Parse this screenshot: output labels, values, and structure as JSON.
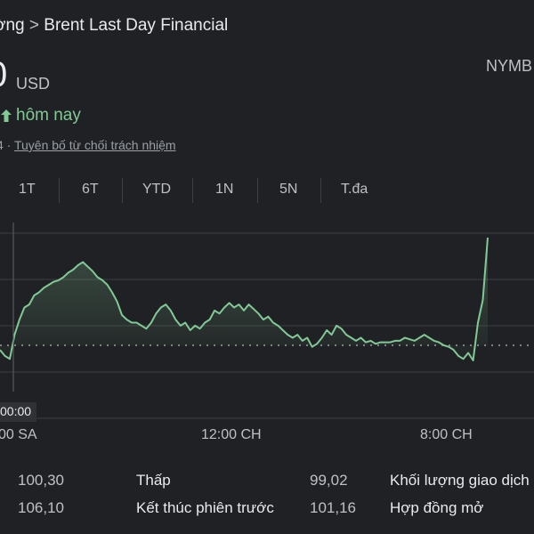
{
  "breadcrumb": {
    "prev": "ờng",
    "sep": ">",
    "current": "Brent Last Day Financial"
  },
  "quote": {
    "price": "0",
    "currency": "USD",
    "exchange": "NYMB",
    "change_label": "hôm nay",
    "direction": "up"
  },
  "disclaimer": {
    "prefix": "4 ·",
    "link": "Tuyên bố từ chối trách nhiệm"
  },
  "range_tabs": [
    "1T",
    "6T",
    "YTD",
    "1N",
    "5N",
    "T.đa"
  ],
  "tooltip_time": "00:00",
  "chart_data": {
    "type": "area",
    "x_tick_labels": [
      "00 SA",
      "12:00 CH",
      "8:00 CH"
    ],
    "grid": true,
    "line_color": "#81c995",
    "fill_color": "#81c995",
    "previous_close_reference": true,
    "relative_values": [
      0.42,
      0.38,
      0.36,
      0.52,
      0.62,
      0.7,
      0.72,
      0.78,
      0.8,
      0.83,
      0.85,
      0.87,
      0.88,
      0.9,
      0.93,
      0.95,
      0.98,
      1.0,
      0.97,
      0.94,
      0.9,
      0.88,
      0.85,
      0.8,
      0.74,
      0.65,
      0.62,
      0.6,
      0.6,
      0.58,
      0.56,
      0.6,
      0.66,
      0.7,
      0.72,
      0.68,
      0.62,
      0.58,
      0.6,
      0.55,
      0.58,
      0.56,
      0.6,
      0.62,
      0.68,
      0.66,
      0.7,
      0.73,
      0.7,
      0.72,
      0.68,
      0.72,
      0.69,
      0.66,
      0.62,
      0.64,
      0.6,
      0.58,
      0.55,
      0.52,
      0.5,
      0.52,
      0.48,
      0.5,
      0.44,
      0.46,
      0.5,
      0.55,
      0.52,
      0.58,
      0.56,
      0.52,
      0.5,
      0.48,
      0.5,
      0.47,
      0.48,
      0.46,
      0.47,
      0.47,
      0.47,
      0.48,
      0.48,
      0.5,
      0.49,
      0.48,
      0.5,
      0.52,
      0.5,
      0.48,
      0.47,
      0.45,
      0.44,
      0.42,
      0.38,
      0.36,
      0.4,
      0.35,
      0.6,
      0.75,
      1.18
    ]
  },
  "stats": [
    {
      "value": "100,30",
      "label": "Thấp",
      "value2": "99,02",
      "label2": "Khối lượng giao dịch"
    },
    {
      "value": "106,10",
      "label": "Kết thúc phiên trước",
      "value2": "101,16",
      "label2": "Hợp đồng mở"
    }
  ]
}
